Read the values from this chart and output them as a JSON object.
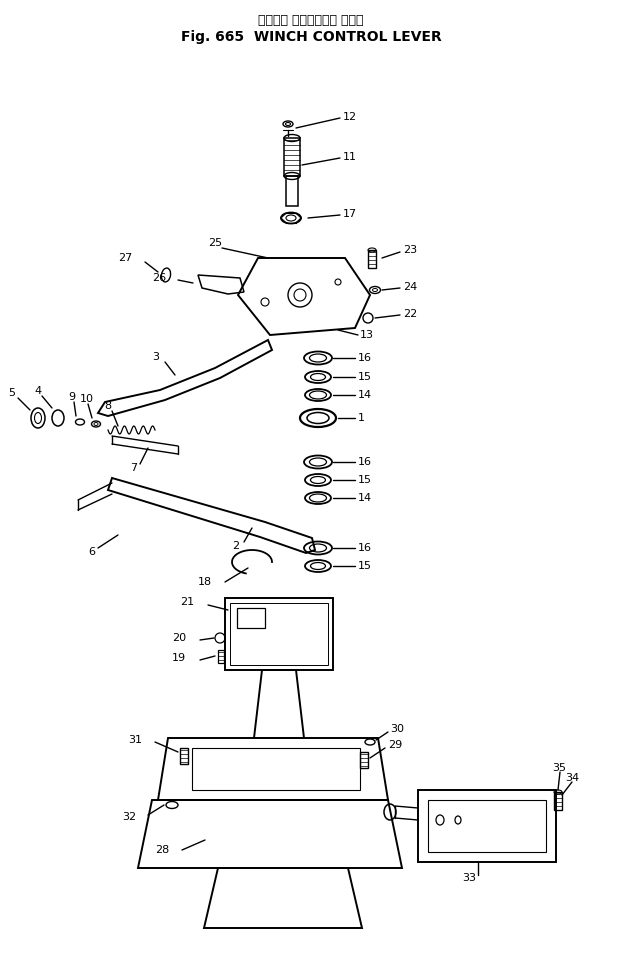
{
  "title_jp": "ウィンチ コントロール レバー",
  "title_en": "Fig. 665  WINCH CONTROL LEVER",
  "bg_color": "#ffffff",
  "fig_width": 6.23,
  "fig_height": 9.61,
  "dpi": 100
}
